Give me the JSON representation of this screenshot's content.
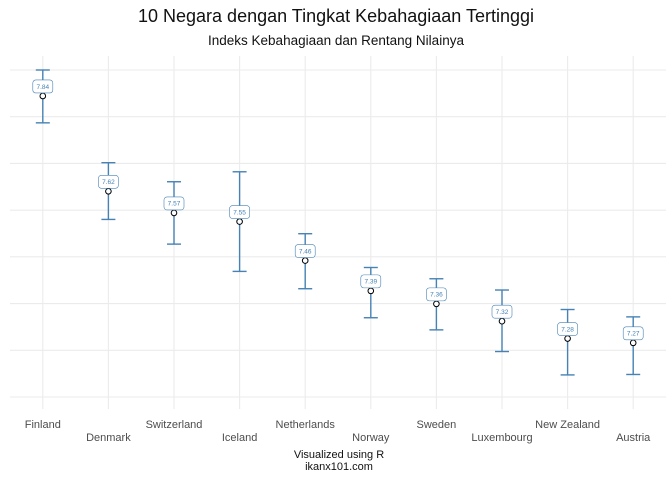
{
  "title": "10 Negara dengan Tingkat Kebahagiaan Tertinggi",
  "subtitle": "Indeks Kebahagiaan dan Rentang Nilainya",
  "caption_line1": "Visualized using R",
  "caption_line2": "ikanx101.com",
  "colors": {
    "series": "#4682B4",
    "point_fill": "#ffffff",
    "grid": "#ebebeb",
    "label_bg": "#ffffff"
  },
  "chart_data": {
    "type": "errorbar",
    "title": "10 Negara dengan Tingkat Kebahagiaan Tertinggi",
    "subtitle": "Indeks Kebahagiaan dan Rentang Nilainya",
    "xlabel": "",
    "ylabel": "",
    "y_tick_labels_shown": false,
    "grid": true,
    "ylim": [
      7.145,
      7.9
    ],
    "categories": [
      "Finland",
      "Denmark",
      "Switzerland",
      "Iceland",
      "Netherlands",
      "Norway",
      "Sweden",
      "Luxembourg",
      "New Zealand",
      "Austria"
    ],
    "values": [
      7.84,
      7.62,
      7.57,
      7.55,
      7.46,
      7.39,
      7.36,
      7.32,
      7.28,
      7.27
    ],
    "value_labels": [
      "7.84",
      "7.62",
      "7.57",
      "7.55",
      "7.46",
      "7.39",
      "7.36",
      "7.32",
      "7.28",
      "7.27"
    ],
    "upper": [
      7.9,
      7.686,
      7.642,
      7.665,
      7.522,
      7.444,
      7.418,
      7.392,
      7.347,
      7.33
    ],
    "lower": [
      7.778,
      7.555,
      7.498,
      7.435,
      7.395,
      7.328,
      7.3,
      7.25,
      7.196,
      7.197
    ]
  }
}
